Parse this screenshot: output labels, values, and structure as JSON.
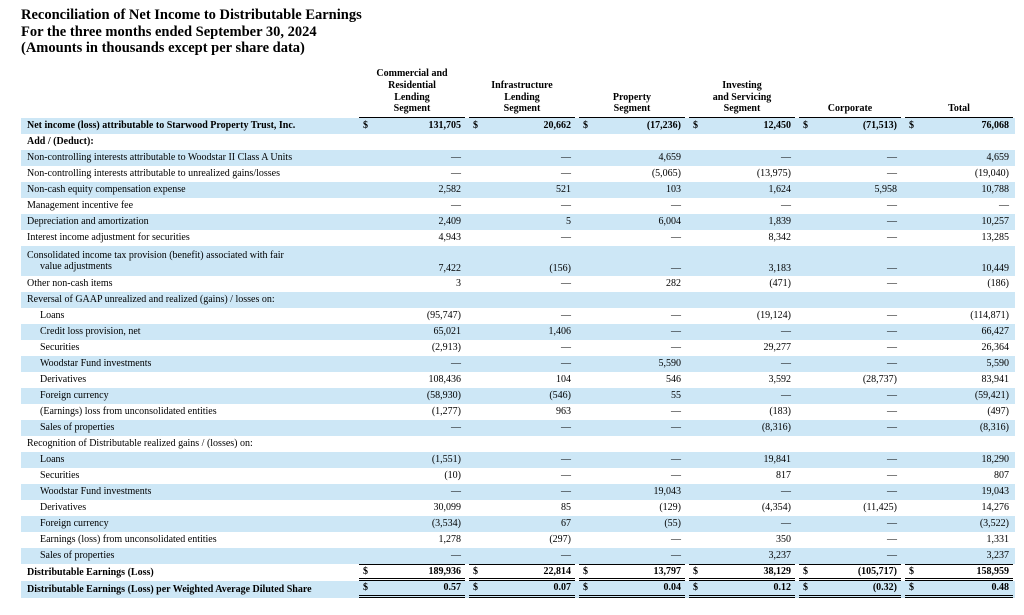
{
  "title": {
    "line1": "Reconciliation of Net Income to Distributable Earnings",
    "line2": "For the three months ended September 30, 2024",
    "line3": "(Amounts in thousands except per share data)"
  },
  "colors": {
    "row_shade": "#cde7f6",
    "text": "#000000",
    "rule": "#000000"
  },
  "table": {
    "currency_symbol": "$",
    "dash": "—",
    "columns": [
      {
        "id": "commercial-residential-lending",
        "lines": [
          "Commercial and",
          "Residential",
          "Lending",
          "Segment"
        ]
      },
      {
        "id": "infrastructure-lending",
        "lines": [
          "Infrastructure",
          "Lending",
          "Segment"
        ]
      },
      {
        "id": "property",
        "lines": [
          "Property",
          "Segment"
        ]
      },
      {
        "id": "investing-servicing",
        "lines": [
          "Investing",
          "and Servicing",
          "Segment"
        ]
      },
      {
        "id": "corporate",
        "lines": [
          "Corporate"
        ]
      },
      {
        "id": "total",
        "lines": [
          "Total"
        ]
      }
    ],
    "rows": [
      {
        "label": "Net income (loss) attributable to Starwood Property Trust, Inc.",
        "bold": true,
        "dollar": true,
        "values": [
          "131,705",
          "20,662",
          "(17,236)",
          "12,450",
          "(71,513)",
          "76,068"
        ]
      },
      {
        "label": "Add / (Deduct):",
        "bold": true,
        "values": []
      },
      {
        "label": "Non-controlling interests attributable to Woodstar II Class A Units",
        "values": [
          "—",
          "—",
          "4,659",
          "—",
          "—",
          "4,659"
        ]
      },
      {
        "label": "Non-controlling interests attributable to unrealized gains/losses",
        "values": [
          "—",
          "—",
          "(5,065)",
          "(13,975)",
          "—",
          "(19,040)"
        ]
      },
      {
        "label": "Non-cash equity compensation expense",
        "values": [
          "2,582",
          "521",
          "103",
          "1,624",
          "5,958",
          "10,788"
        ]
      },
      {
        "label": "Management incentive fee",
        "values": [
          "—",
          "—",
          "—",
          "—",
          "—",
          "—"
        ]
      },
      {
        "label": "Depreciation and amortization",
        "values": [
          "2,409",
          "5",
          "6,004",
          "1,839",
          "—",
          "10,257"
        ]
      },
      {
        "label": "Interest income adjustment for securities",
        "values": [
          "4,943",
          "—",
          "—",
          "8,342",
          "—",
          "13,285"
        ]
      },
      {
        "label": "Consolidated income tax provision (benefit) associated with fair",
        "cont": "value adjustments",
        "values": [
          "7,422",
          "(156)",
          "—",
          "3,183",
          "—",
          "10,449"
        ]
      },
      {
        "label": "Other non-cash items",
        "values": [
          "3",
          "—",
          "282",
          "(471)",
          "—",
          "(186)"
        ]
      },
      {
        "label": "Reversal of GAAP unrealized and realized (gains) / losses on:",
        "values": []
      },
      {
        "label": "Loans",
        "indent": true,
        "values": [
          "(95,747)",
          "—",
          "—",
          "(19,124)",
          "—",
          "(114,871)"
        ]
      },
      {
        "label": "Credit loss provision, net",
        "indent": true,
        "values": [
          "65,021",
          "1,406",
          "—",
          "—",
          "—",
          "66,427"
        ]
      },
      {
        "label": "Securities",
        "indent": true,
        "values": [
          "(2,913)",
          "—",
          "—",
          "29,277",
          "—",
          "26,364"
        ]
      },
      {
        "label": "Woodstar Fund investments",
        "indent": true,
        "values": [
          "—",
          "—",
          "5,590",
          "—",
          "—",
          "5,590"
        ]
      },
      {
        "label": "Derivatives",
        "indent": true,
        "values": [
          "108,436",
          "104",
          "546",
          "3,592",
          "(28,737)",
          "83,941"
        ]
      },
      {
        "label": "Foreign currency",
        "indent": true,
        "values": [
          "(58,930)",
          "(546)",
          "55",
          "—",
          "—",
          "(59,421)"
        ]
      },
      {
        "label": "(Earnings) loss from unconsolidated entities",
        "indent": true,
        "values": [
          "(1,277)",
          "963",
          "—",
          "(183)",
          "—",
          "(497)"
        ]
      },
      {
        "label": "Sales of properties",
        "indent": true,
        "values": [
          "—",
          "—",
          "—",
          "(8,316)",
          "—",
          "(8,316)"
        ]
      },
      {
        "label": "Recognition of Distributable realized gains / (losses) on:",
        "values": []
      },
      {
        "label": "Loans",
        "indent": true,
        "values": [
          "(1,551)",
          "—",
          "—",
          "19,841",
          "—",
          "18,290"
        ]
      },
      {
        "label": "Securities",
        "indent": true,
        "values": [
          "(10)",
          "—",
          "—",
          "817",
          "—",
          "807"
        ]
      },
      {
        "label": "Woodstar Fund investments",
        "indent": true,
        "values": [
          "—",
          "—",
          "19,043",
          "—",
          "—",
          "19,043"
        ]
      },
      {
        "label": "Derivatives",
        "indent": true,
        "values": [
          "30,099",
          "85",
          "(129)",
          "(4,354)",
          "(11,425)",
          "14,276"
        ]
      },
      {
        "label": "Foreign currency",
        "indent": true,
        "values": [
          "(3,534)",
          "67",
          "(55)",
          "—",
          "—",
          "(3,522)"
        ]
      },
      {
        "label": "Earnings (loss) from unconsolidated entities",
        "indent": true,
        "values": [
          "1,278",
          "(297)",
          "—",
          "350",
          "—",
          "1,331"
        ]
      },
      {
        "label": "Sales of properties",
        "indent": true,
        "values": [
          "—",
          "—",
          "—",
          "3,237",
          "—",
          "3,237"
        ]
      },
      {
        "label": "Distributable Earnings (Loss)",
        "bold": true,
        "dollar": true,
        "rule": "total",
        "values": [
          "189,936",
          "22,814",
          "13,797",
          "38,129",
          "(105,717)",
          "158,959"
        ]
      },
      {
        "label": "Distributable Earnings (Loss) per Weighted Average Diluted Share",
        "bold": true,
        "dollar": true,
        "rule": "final",
        "values": [
          "0.57",
          "0.07",
          "0.04",
          "0.12",
          "(0.32)",
          "0.48"
        ]
      }
    ]
  }
}
